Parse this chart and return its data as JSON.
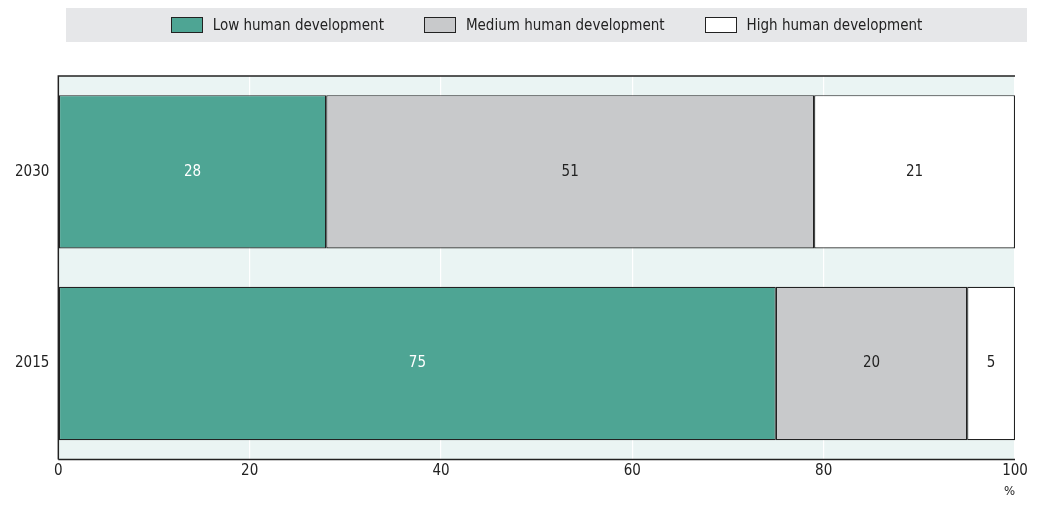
{
  "chart_data": {
    "type": "bar",
    "orientation": "horizontal",
    "stacked": true,
    "categories": [
      "2030",
      "2015"
    ],
    "series": [
      {
        "name": "Low human development",
        "color": "#4ea594",
        "values": [
          28,
          75
        ]
      },
      {
        "name": "Medium human development",
        "color": "#c8c9cb",
        "values": [
          51,
          20
        ]
      },
      {
        "name": "High human development",
        "color": "#ffffff",
        "values": [
          21,
          5
        ]
      }
    ],
    "xlim": [
      0,
      100
    ],
    "xticks": [
      0,
      20,
      40,
      60,
      80,
      100
    ],
    "xlabel": "%",
    "grid": "x",
    "legend": "top",
    "data_labels": true
  }
}
